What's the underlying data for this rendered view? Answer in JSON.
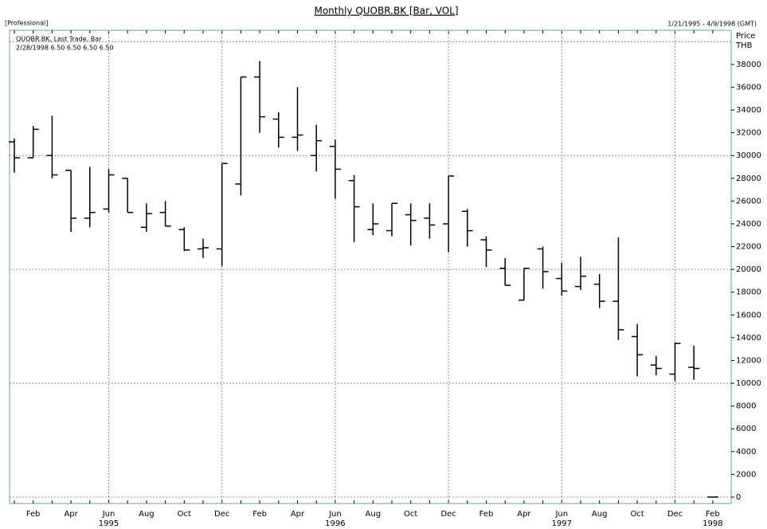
{
  "chart_data": {
    "type": "ohlc",
    "title": "Monthly QUOBR.BK [Bar, VOL]",
    "edition": "[Professional]",
    "date_range": "1/21/1995 - 4/9/1998 (GMT)",
    "legend_lines": [
      "QUOBR.BK, Last Trade, Bar",
      "2/28/1998 6.50 6.50 6.50 6.50"
    ],
    "y_axis_label": [
      "Price",
      "THB"
    ],
    "categories": [
      null,
      "Feb",
      null,
      "Apr",
      null,
      "Jun",
      null,
      "Aug",
      null,
      "Oct",
      null,
      "Dec",
      null,
      "Feb",
      null,
      "Apr",
      null,
      "Jun",
      null,
      "Aug",
      null,
      "Oct",
      null,
      "Dec",
      null,
      "Feb",
      null,
      "Apr",
      null,
      "Jun",
      null,
      "Aug",
      null,
      "Oct",
      null,
      "Dec",
      null,
      "Feb"
    ],
    "years": [
      "1995",
      "1996",
      "1997",
      "1998"
    ],
    "series": [
      {
        "name": "QUOBR.BK",
        "color": "#000000",
        "open": [
          31200,
          29800,
          30000,
          28700,
          24500,
          25300,
          28000,
          23700,
          25000,
          23500,
          21800,
          21800,
          27500,
          36900,
          33200,
          31600,
          30000,
          30800,
          27800,
          23500,
          23400,
          24800,
          24500,
          24000,
          25100,
          22600,
          20100,
          17300,
          21800,
          19200,
          18500,
          18700,
          17200,
          14100,
          11600,
          10800,
          11400,
          6.5
        ],
        "high": [
          31500,
          32600,
          33500,
          28700,
          29000,
          28800,
          28000,
          25800,
          26000,
          23700,
          22700,
          29300,
          36900,
          38300,
          33800,
          36000,
          32700,
          31400,
          28300,
          25800,
          25800,
          25800,
          25800,
          28200,
          25300,
          22900,
          21000,
          20100,
          22000,
          20600,
          21100,
          19600,
          22800,
          15200,
          12400,
          13600,
          13300,
          6.5
        ],
        "low": [
          28500,
          29800,
          28000,
          23300,
          23700,
          25000,
          25000,
          23300,
          23800,
          21600,
          21000,
          20300,
          26500,
          32000,
          30700,
          30400,
          28600,
          26200,
          22400,
          23000,
          22900,
          22100,
          22700,
          21500,
          22000,
          20200,
          18600,
          17300,
          18300,
          17700,
          18200,
          16600,
          13800,
          10600,
          10700,
          10200,
          10300,
          6.5
        ],
        "close": [
          29800,
          32300,
          28300,
          24500,
          25000,
          28300,
          25000,
          24900,
          23800,
          21700,
          21900,
          29300,
          36900,
          33400,
          31600,
          31800,
          31300,
          28800,
          25500,
          24000,
          25800,
          24300,
          23900,
          28200,
          23400,
          21700,
          18600,
          20100,
          19800,
          18100,
          19400,
          17200,
          14700,
          12500,
          11300,
          13500,
          11300,
          6.5
        ]
      }
    ],
    "ylim": [
      -560,
      41000
    ],
    "yticks": [
      0,
      2000,
      4000,
      6000,
      8000,
      10000,
      12000,
      14000,
      16000,
      18000,
      20000,
      22000,
      24000,
      26000,
      28000,
      30000,
      32000,
      34000,
      36000,
      38000
    ],
    "grid_step": 10000,
    "grid": true
  }
}
